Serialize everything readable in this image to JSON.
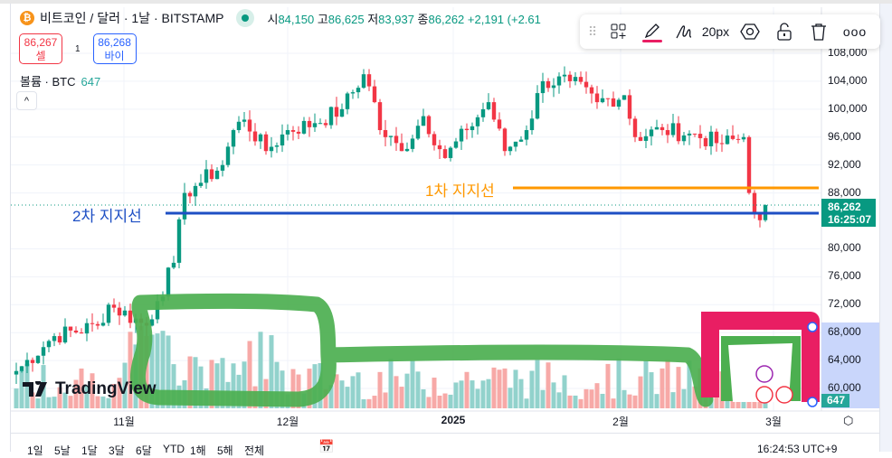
{
  "header": {
    "symbol_icon": "bitcoin-icon",
    "title": "비트코인 / 달러 · 1날 · BITSTAMP",
    "ohlc": {
      "o_label": "시",
      "o": "84,150",
      "h_label": "고",
      "h": "86,625",
      "l_label": "저",
      "l": "83,937",
      "c_label": "종",
      "c": "86,262",
      "change": "+2,191 (+2.61"
    }
  },
  "trade": {
    "sell_price": "86,267",
    "sell_label": "셀",
    "spread": "1",
    "buy_price": "86,268",
    "buy_label": "바이"
  },
  "volume_legend": {
    "label": "볼륨 · BTC",
    "value": "647"
  },
  "drawing_toolbar": {
    "stroke_width": "20px",
    "pen_color": "#e91e63",
    "icons": [
      "drag-handle-icon",
      "add-template-icon",
      "pencil-icon",
      "stroke-icon",
      "settings-hexagon-icon",
      "unlock-icon",
      "trash-icon",
      "more-icon"
    ]
  },
  "price_axis": [
    "108,000",
    "104,000",
    "100,000",
    "96,000",
    "92,000",
    "88,000",
    "80,000",
    "76,000",
    "72,000",
    "68,000",
    "64,000",
    "60,000"
  ],
  "price_ticks": [
    108000,
    104000,
    100000,
    96000,
    92000,
    88000,
    80000,
    76000,
    72000,
    68000,
    64000,
    60000
  ],
  "last_price": {
    "price": "86,262",
    "countdown": "16:25:07"
  },
  "last_volume": "647",
  "time_axis": [
    "11월",
    "12월",
    "2025",
    "2월",
    "3월"
  ],
  "levels": [
    {
      "label": "1차 지지선",
      "price": 88800,
      "color": "#ff9800"
    },
    {
      "label": "2차 지지선",
      "price": 85500,
      "color": "#1e4fc4"
    }
  ],
  "colors": {
    "up": "#089981",
    "down": "#f23645",
    "up_vol": "#92d2cc",
    "down_vol": "#f7a9a7",
    "brush_green": "#4caf50",
    "brush_pink": "#e91e63"
  },
  "logo": "TradingView",
  "bottom": {
    "ranges": [
      "1일",
      "5날",
      "1달",
      "3달",
      "6달",
      "YTD",
      "1해",
      "5해",
      "전체"
    ],
    "clock": "16:24:53 UTC+9"
  },
  "chart_data": {
    "type": "candlestick",
    "keypoints_close": [
      [
        0,
        62500
      ],
      [
        7,
        67500
      ],
      [
        15,
        69000
      ],
      [
        17,
        72000
      ],
      [
        24,
        69000
      ],
      [
        26,
        72500
      ],
      [
        29,
        78000
      ],
      [
        31,
        88000
      ],
      [
        33,
        89000
      ],
      [
        38,
        92000
      ],
      [
        40,
        97000
      ],
      [
        42,
        98500
      ],
      [
        46,
        94000
      ],
      [
        50,
        97000
      ],
      [
        55,
        98000
      ],
      [
        60,
        100000
      ],
      [
        64,
        105000
      ],
      [
        66,
        101000
      ],
      [
        67,
        97000
      ],
      [
        71,
        94000
      ],
      [
        75,
        99000
      ],
      [
        79,
        93000
      ],
      [
        83,
        97000
      ],
      [
        87,
        101000
      ],
      [
        90,
        94000
      ],
      [
        94,
        97000
      ],
      [
        97,
        104000
      ],
      [
        102,
        104000
      ],
      [
        107,
        101000
      ],
      [
        112,
        102000
      ],
      [
        114,
        96000
      ],
      [
        119,
        97000
      ],
      [
        124,
        96500
      ],
      [
        130,
        95000
      ],
      [
        134,
        96000
      ],
      [
        135,
        88000
      ],
      [
        137,
        84100
      ],
      [
        138,
        86262
      ]
    ]
  }
}
